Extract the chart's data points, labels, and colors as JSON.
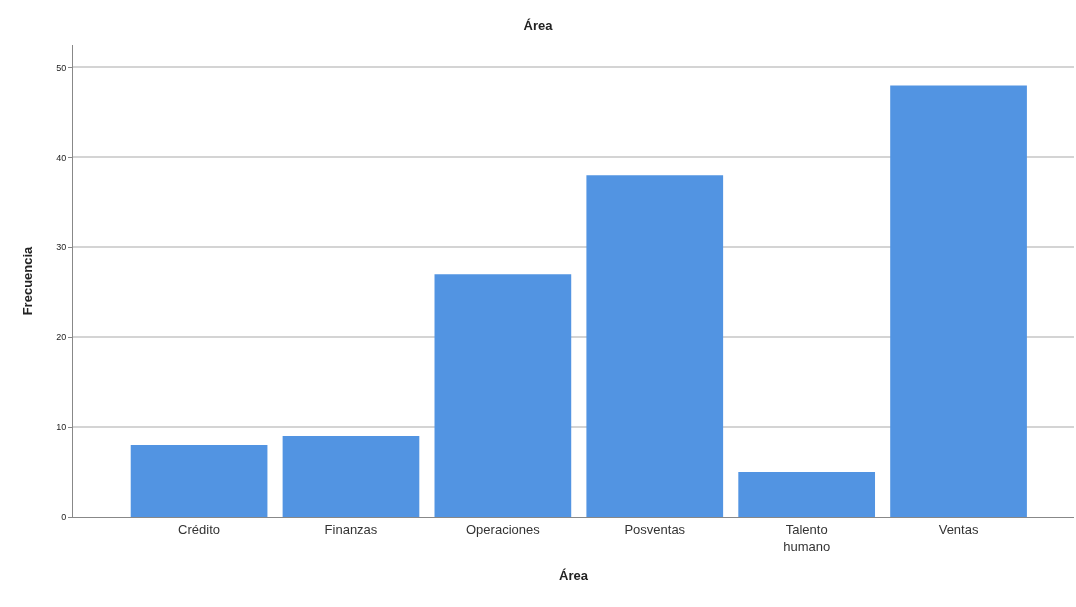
{
  "chart_data": {
    "type": "bar",
    "title": "Área",
    "xlabel": "Área",
    "ylabel": "Frecuencia",
    "categories": [
      "Crédito",
      "Finanzas",
      "Operaciones",
      "Posventas",
      "Talento humano",
      "Ventas"
    ],
    "values": [
      8,
      9,
      27,
      38,
      5,
      48
    ],
    "color": "#5294e2",
    "ylim": [
      0,
      52.5
    ],
    "yticks": [
      0,
      10,
      20,
      30,
      40,
      50
    ],
    "grid": "y",
    "legend": false
  }
}
